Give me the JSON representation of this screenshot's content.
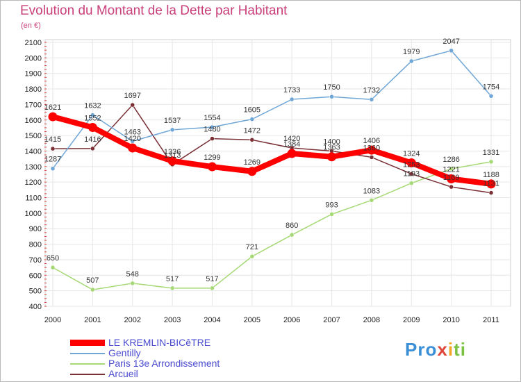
{
  "chart_data": {
    "type": "line",
    "title": "Evolution du Montant de la Dette par Habitant",
    "subtitle": "(en €)",
    "xlabel": "",
    "ylabel": "",
    "x": [
      "2000",
      "2001",
      "2002",
      "2003",
      "2004",
      "2005",
      "2006",
      "2007",
      "2008",
      "2009",
      "2010",
      "2011"
    ],
    "ylim": [
      400,
      2100
    ],
    "yticks": [
      400,
      500,
      600,
      700,
      800,
      900,
      1000,
      1100,
      1200,
      1300,
      1400,
      1500,
      1600,
      1700,
      1800,
      1900,
      2000,
      2100
    ],
    "grid": true,
    "legend_position": "bottom-left",
    "series": [
      {
        "name": "LE KREMLIN-BICêTRE",
        "color": "#ff0000",
        "values": [
          1621,
          1552,
          1420,
          1336,
          1299,
          1269,
          1384,
          1363,
          1406,
          1324,
          1221,
          1188
        ],
        "labels": [
          "1621",
          "1552",
          "1420",
          "1336",
          "1299",
          "1269",
          "1384",
          "1363",
          "1406",
          "1324",
          "1221",
          "1188"
        ]
      },
      {
        "name": "Gentilly",
        "color": "#6fa6d6",
        "values": [
          1287,
          1632,
          1463,
          1537,
          1554,
          1605,
          1733,
          1750,
          1732,
          1979,
          2047,
          1754
        ],
        "labels": [
          "1287",
          "1632",
          "1463",
          "1537",
          "1554",
          "1605",
          "1733",
          "1750",
          "1732",
          "1979",
          "2047",
          "1754"
        ]
      },
      {
        "name": "Paris 13e  Arrondissement",
        "color": "#a6d975",
        "values": [
          650,
          507,
          548,
          517,
          517,
          721,
          860,
          993,
          1083,
          1193,
          1286,
          1331
        ],
        "labels": [
          "650",
          "507",
          "548",
          "517",
          "517",
          "721",
          "860",
          "993",
          "1083",
          "1193",
          "1286",
          "1331"
        ]
      },
      {
        "name": "Arcueil",
        "color": "#7a3035",
        "values": [
          1415,
          1416,
          1697,
          1313,
          1480,
          1472,
          1420,
          1400,
          1360,
          1253,
          1169,
          1131
        ],
        "labels": [
          "1415",
          "1416",
          "1697",
          "1313",
          "1480",
          "1472",
          "1420",
          "1400",
          "1360",
          "1253",
          "1169",
          "1131"
        ]
      }
    ]
  },
  "logo": {
    "p1": "Pro",
    "p2": "x",
    "p3": "i",
    "p4": "ti"
  }
}
